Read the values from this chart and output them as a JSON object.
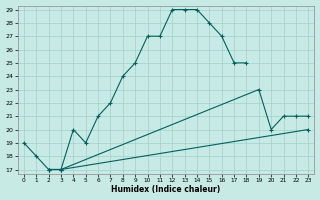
{
  "xlabel": "Humidex (Indice chaleur)",
  "xlim": [
    -0.5,
    23.5
  ],
  "ylim": [
    16.7,
    29.3
  ],
  "xticks": [
    0,
    1,
    2,
    3,
    4,
    5,
    6,
    7,
    8,
    9,
    10,
    11,
    12,
    13,
    14,
    15,
    16,
    17,
    18,
    19,
    20,
    21,
    22,
    23
  ],
  "yticks": [
    17,
    18,
    19,
    20,
    21,
    22,
    23,
    24,
    25,
    26,
    27,
    28,
    29
  ],
  "background_color": "#c8eae4",
  "grid_color": "#a0d0cc",
  "line_color": "#006060",
  "line1_x": [
    0,
    1,
    2,
    3,
    4,
    5,
    6,
    7,
    8,
    9,
    10,
    11,
    12,
    13,
    14,
    15,
    16,
    17,
    18
  ],
  "line1_y": [
    19,
    18,
    17,
    17,
    20,
    19,
    21,
    22,
    24,
    25,
    27,
    27,
    29,
    29,
    29,
    28,
    27,
    25,
    25
  ],
  "line2_x": [
    2,
    3,
    19,
    20,
    21,
    22,
    23
  ],
  "line2_y": [
    17,
    17,
    23,
    20,
    21,
    21,
    21
  ],
  "line3_x": [
    2,
    3,
    23
  ],
  "line3_y": [
    17,
    17,
    20
  ],
  "marker": "+"
}
